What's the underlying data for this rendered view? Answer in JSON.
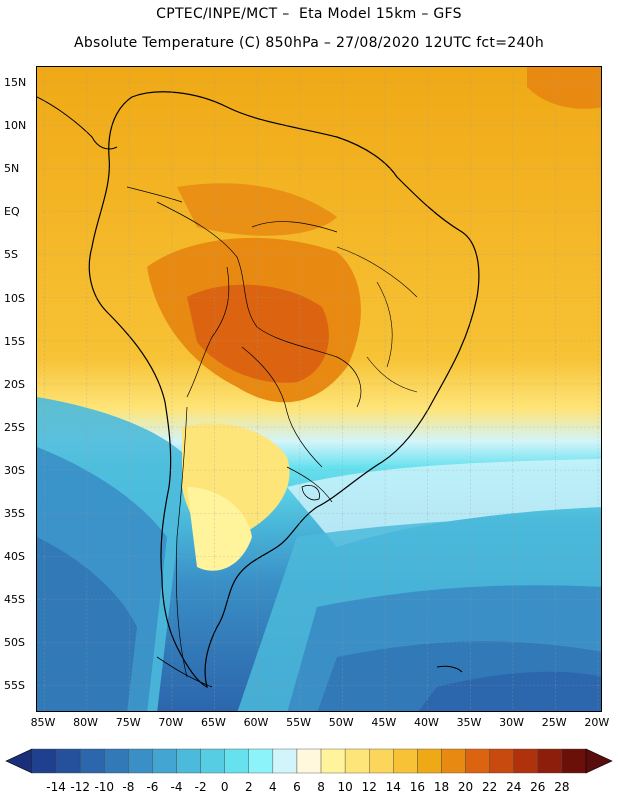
{
  "header": {
    "line1": "CPTEC/INPE/MCT –  Eta Model 15km – GFS",
    "line2": "Absolute Temperature (C) 850hPa – 27/08/2020 12UTC fct=240h"
  },
  "map": {
    "lat_labels": [
      "15N",
      "10N",
      "5N",
      "EQ",
      "5S",
      "10S",
      "15S",
      "20S",
      "25S",
      "30S",
      "35S",
      "40S",
      "45S",
      "50S",
      "55S"
    ],
    "lon_labels": [
      "85W",
      "80W",
      "75W",
      "70W",
      "65W",
      "60W",
      "55W",
      "50W",
      "45W",
      "40W",
      "35W",
      "30W",
      "25W",
      "20W"
    ]
  },
  "colorbar": {
    "labels": [
      "-14",
      "-12",
      "-10",
      "-8",
      "-6",
      "-4",
      "-2",
      "0",
      "2",
      "4",
      "6",
      "8",
      "10",
      "12",
      "14",
      "16",
      "18",
      "20",
      "22",
      "24",
      "26",
      "28"
    ],
    "colors": [
      "#1f3f8f",
      "#24509c",
      "#2c66ad",
      "#3279b8",
      "#3a8fc6",
      "#42a5d2",
      "#4bbadb",
      "#57cde4",
      "#66e1ee",
      "#8cf3fb",
      "#d2f4fb",
      "#fff8dc",
      "#fff39b",
      "#fee57a",
      "#fcd65a",
      "#f7c235",
      "#f0a916",
      "#e88a12",
      "#dc6410",
      "#c94a0e",
      "#b0320c",
      "#8e1e0c",
      "#6a1008"
    ],
    "under_color": "#1a2f7a",
    "over_color": "#5a0d0d"
  }
}
